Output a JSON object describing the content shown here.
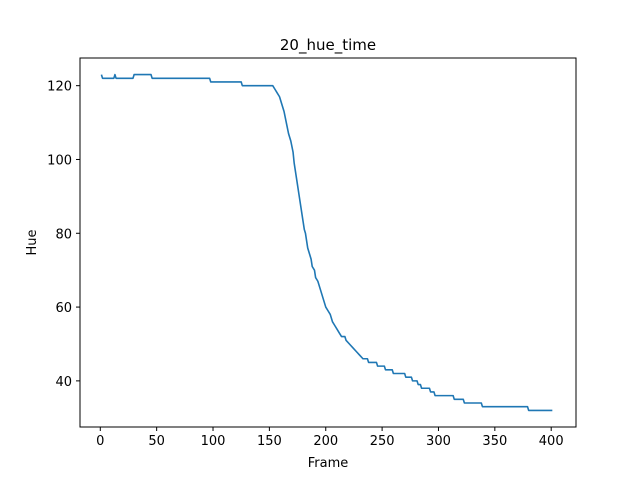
{
  "chart_data": {
    "type": "line",
    "title": "20_hue_time",
    "xlabel": "Frame",
    "ylabel": "Hue",
    "xlim": [
      -18,
      422
    ],
    "ylim": [
      27.5,
      127.5
    ],
    "xticks": [
      0,
      50,
      100,
      150,
      200,
      250,
      300,
      350,
      400
    ],
    "yticks": [
      40,
      60,
      80,
      100,
      120
    ],
    "grid": false,
    "series": [
      {
        "color": "#1f77b4",
        "points": [
          [
            1,
            123
          ],
          [
            2,
            122
          ],
          [
            12,
            122
          ],
          [
            13,
            123
          ],
          [
            14,
            122
          ],
          [
            29,
            122
          ],
          [
            30,
            123
          ],
          [
            45,
            123
          ],
          [
            46,
            122
          ],
          [
            97,
            122
          ],
          [
            98,
            121
          ],
          [
            125,
            121
          ],
          [
            126,
            120
          ],
          [
            153,
            120
          ],
          [
            155,
            119
          ],
          [
            157,
            118
          ],
          [
            159,
            117
          ],
          [
            161,
            115
          ],
          [
            163,
            113
          ],
          [
            165,
            110
          ],
          [
            167,
            107
          ],
          [
            169,
            105
          ],
          [
            171,
            102
          ],
          [
            172,
            99
          ],
          [
            173,
            97
          ],
          [
            174,
            95
          ],
          [
            175,
            93
          ],
          [
            176,
            91
          ],
          [
            177,
            89
          ],
          [
            178,
            87
          ],
          [
            179,
            85
          ],
          [
            180,
            83
          ],
          [
            181,
            81
          ],
          [
            182,
            80
          ],
          [
            183,
            78
          ],
          [
            184,
            76
          ],
          [
            186,
            74
          ],
          [
            187,
            73
          ],
          [
            188,
            71
          ],
          [
            190,
            70
          ],
          [
            191,
            68
          ],
          [
            193,
            67
          ],
          [
            194,
            66
          ],
          [
            196,
            64
          ],
          [
            198,
            62
          ],
          [
            200,
            60
          ],
          [
            202,
            59
          ],
          [
            204,
            58
          ],
          [
            206,
            56
          ],
          [
            208,
            55
          ],
          [
            210,
            54
          ],
          [
            212,
            53
          ],
          [
            214,
            52
          ],
          [
            217,
            52
          ],
          [
            218,
            51
          ],
          [
            221,
            50
          ],
          [
            224,
            49
          ],
          [
            227,
            48
          ],
          [
            230,
            47
          ],
          [
            233,
            46
          ],
          [
            237,
            46
          ],
          [
            238,
            45
          ],
          [
            245,
            45
          ],
          [
            246,
            44
          ],
          [
            252,
            44
          ],
          [
            253,
            43
          ],
          [
            259,
            43
          ],
          [
            260,
            42
          ],
          [
            270,
            42
          ],
          [
            271,
            41
          ],
          [
            276,
            41
          ],
          [
            277,
            40
          ],
          [
            281,
            40
          ],
          [
            282,
            39
          ],
          [
            284,
            39
          ],
          [
            285,
            38
          ],
          [
            292,
            38
          ],
          [
            293,
            37
          ],
          [
            296,
            37
          ],
          [
            297,
            36
          ],
          [
            313,
            36
          ],
          [
            314,
            35
          ],
          [
            322,
            35
          ],
          [
            323,
            34
          ],
          [
            338,
            34
          ],
          [
            339,
            33
          ],
          [
            379,
            33
          ],
          [
            380,
            32
          ],
          [
            401,
            32
          ]
        ]
      }
    ]
  }
}
